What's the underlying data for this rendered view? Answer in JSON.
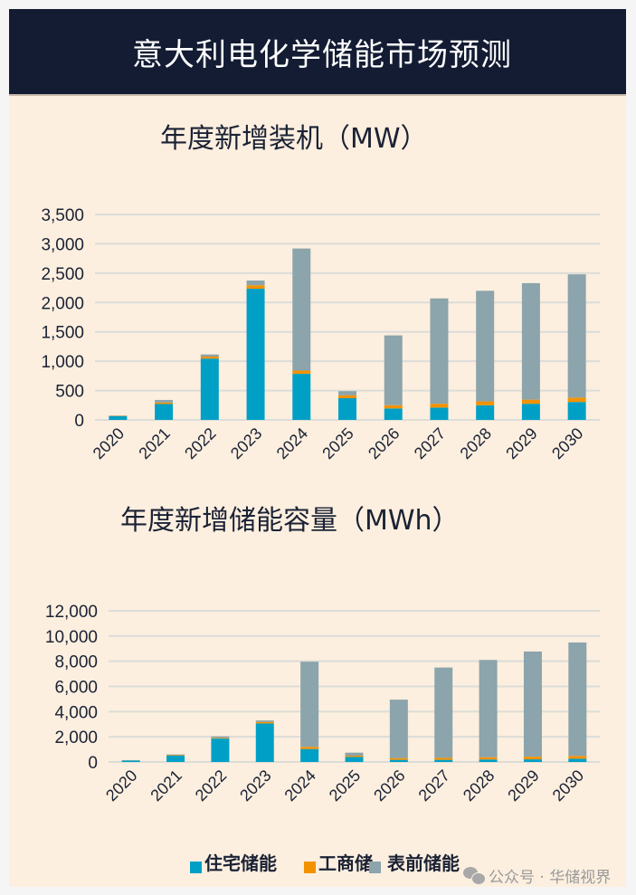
{
  "header": {
    "title": "意大利电化学储能市场预测"
  },
  "colors": {
    "residential": "#00a0c6",
    "ci": "#f39200",
    "ftm": "#8ca4ab",
    "grid": "#dcdcd8",
    "header_bg": "#131c33",
    "card_bg": "#fcefdf"
  },
  "legend": [
    {
      "label": "住宅储能",
      "color": "#00a0c6"
    },
    {
      "label": "工商储",
      "color": "#f39200"
    },
    {
      "label": "表前储能",
      "color": "#8ca4ab"
    }
  ],
  "watermark": {
    "text": "公众号 · 华储视界",
    "icon": "wechat-icon"
  },
  "chart_data": [
    {
      "type": "bar",
      "stacked": true,
      "title": "年度新增装机（MW）",
      "xlabel": "",
      "ylabel": "",
      "categories": [
        "2020",
        "2021",
        "2022",
        "2023",
        "2024",
        "2025",
        "2026",
        "2027",
        "2028",
        "2029",
        "2030"
      ],
      "ylim": [
        0,
        3500
      ],
      "yticks": [
        0,
        500,
        1000,
        1500,
        2000,
        2500,
        3000,
        3500
      ],
      "ytick_labels": [
        "0",
        "500",
        "1,000",
        "1,500",
        "2,000",
        "2,500",
        "3,000",
        "3,500"
      ],
      "grid": true,
      "legend": "bottom",
      "series": [
        {
          "name": "住宅储能",
          "values": [
            65,
            270,
            1045,
            2235,
            785,
            370,
            195,
            210,
            250,
            275,
            305
          ]
        },
        {
          "name": "工商储",
          "values": [
            5,
            25,
            35,
            60,
            55,
            50,
            55,
            65,
            65,
            70,
            75
          ]
        },
        {
          "name": "表前储能",
          "values": [
            5,
            45,
            35,
            80,
            2080,
            70,
            1190,
            1795,
            1885,
            1985,
            2100
          ]
        }
      ]
    },
    {
      "type": "bar",
      "stacked": true,
      "title": "年度新增储能容量（MWh）",
      "xlabel": "",
      "ylabel": "",
      "categories": [
        "2020",
        "2021",
        "2022",
        "2023",
        "2024",
        "2025",
        "2026",
        "2027",
        "2028",
        "2029",
        "2030"
      ],
      "ylim": [
        0,
        12000
      ],
      "yticks": [
        0,
        2000,
        4000,
        6000,
        8000,
        10000,
        12000
      ],
      "ytick_labels": [
        "0",
        "2,000",
        "4,000",
        "6,000",
        "8,000",
        "10,000",
        "12,000"
      ],
      "grid": true,
      "legend": "bottom",
      "series": [
        {
          "name": "住宅储能",
          "values": [
            120,
            500,
            1860,
            3060,
            1030,
            400,
            170,
            170,
            200,
            210,
            260
          ]
        },
        {
          "name": "工商储",
          "values": [
            10,
            40,
            60,
            120,
            170,
            100,
            140,
            160,
            180,
            210,
            220
          ]
        },
        {
          "name": "表前储能",
          "values": [
            20,
            60,
            110,
            120,
            6760,
            240,
            4640,
            7170,
            7720,
            8350,
            9010
          ]
        }
      ]
    }
  ]
}
